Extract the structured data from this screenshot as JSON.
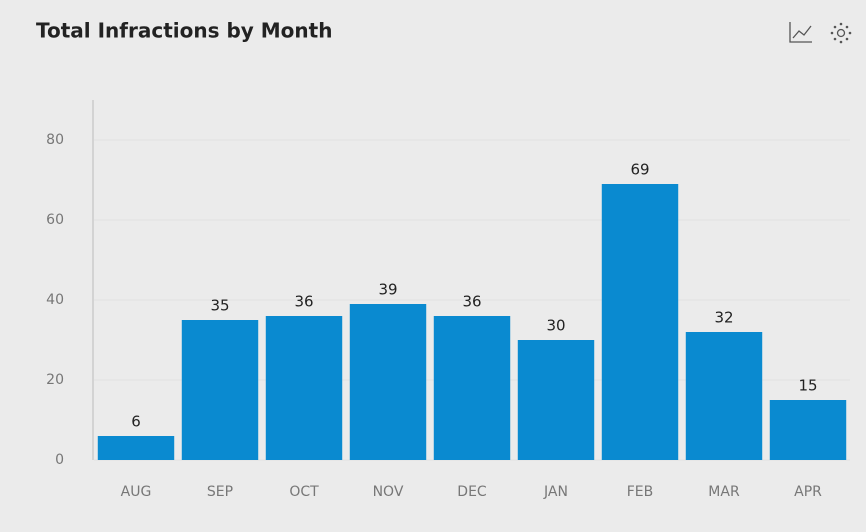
{
  "chart_data": {
    "type": "bar",
    "title": "Total Infractions by Month",
    "categories": [
      "AUG",
      "SEP",
      "OCT",
      "NOV",
      "DEC",
      "JAN",
      "FEB",
      "MAR",
      "APR"
    ],
    "values": [
      6,
      35,
      36,
      39,
      36,
      30,
      69,
      32,
      15
    ],
    "color": "#0a8ad0",
    "ylim": [
      0,
      90
    ],
    "yticks": [
      0,
      20,
      40,
      60,
      80
    ],
    "grid": true
  }
}
